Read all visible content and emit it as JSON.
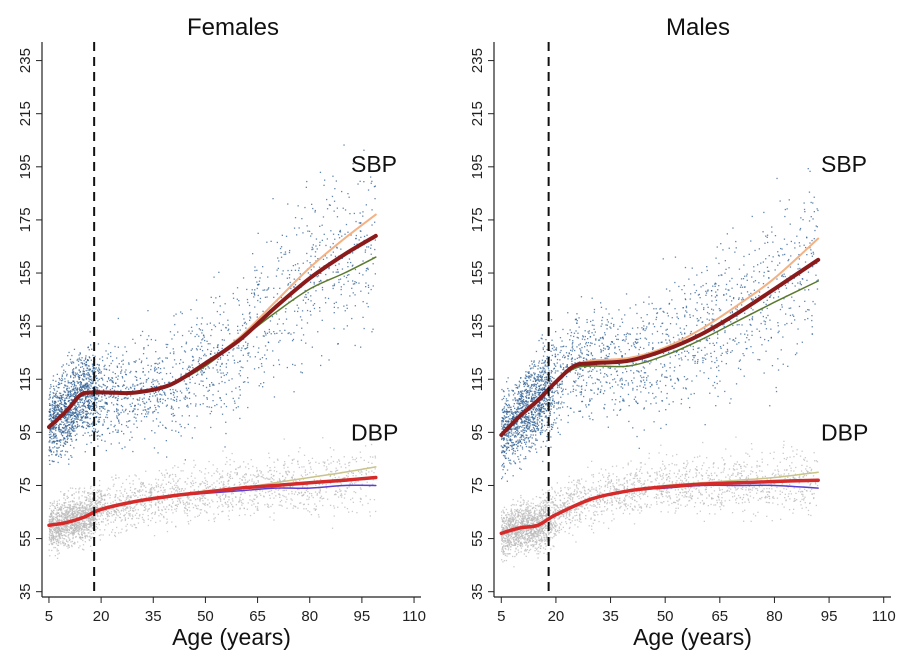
{
  "chart_data": [
    {
      "type": "scatter",
      "title": "Females",
      "xlabel": "Age (years)",
      "ylabel": "",
      "xlim": [
        3,
        112
      ],
      "ylim": [
        33,
        242
      ],
      "xticks": [
        "5",
        "20",
        "35",
        "50",
        "65",
        "80",
        "95",
        "110"
      ],
      "yticks": [
        "35",
        "55",
        "75",
        "95",
        "115",
        "135",
        "155",
        "175",
        "195",
        "215",
        "235"
      ],
      "grid": false,
      "vline_x": 18,
      "labels": {
        "sbp": "SBP",
        "dbp": "DBP"
      },
      "scatter": {
        "sbp": {
          "color": "#2d5f93",
          "x_range": [
            5,
            99
          ]
        },
        "dbp": {
          "color": "#b9b9b9",
          "x_range": [
            5,
            99
          ]
        }
      },
      "series": [
        {
          "group": "SBP",
          "color": "#f4b183",
          "width": 2,
          "points": [
            [
              5,
              97
            ],
            [
              10,
              103
            ],
            [
              14,
              109
            ],
            [
              17,
              110
            ],
            [
              22,
              110
            ],
            [
              30,
              110
            ],
            [
              40,
              113
            ],
            [
              50,
              121
            ],
            [
              60,
              131
            ],
            [
              70,
              144
            ],
            [
              80,
              157
            ],
            [
              90,
              168
            ],
            [
              99,
              177
            ]
          ]
        },
        {
          "group": "SBP",
          "color": "#5a7a2e",
          "width": 1.5,
          "points": [
            [
              5,
              97
            ],
            [
              10,
              103
            ],
            [
              14,
              109
            ],
            [
              17,
              110
            ],
            [
              22,
              110
            ],
            [
              30,
              110
            ],
            [
              40,
              113
            ],
            [
              50,
              120
            ],
            [
              60,
              130
            ],
            [
              70,
              140
            ],
            [
              80,
              149
            ],
            [
              90,
              155
            ],
            [
              99,
              161
            ]
          ]
        },
        {
          "group": "SBP",
          "color": "#8b1a1a",
          "width": 4,
          "points": [
            [
              5,
              97
            ],
            [
              10,
              103
            ],
            [
              14,
              109
            ],
            [
              17,
              110
            ],
            [
              22,
              110
            ],
            [
              30,
              110
            ],
            [
              40,
              113
            ],
            [
              50,
              121
            ],
            [
              60,
              130
            ],
            [
              70,
              142
            ],
            [
              80,
              153
            ],
            [
              90,
              162
            ],
            [
              99,
              169
            ]
          ]
        },
        {
          "group": "DBP",
          "color": "#c9c48a",
          "width": 1.5,
          "points": [
            [
              5,
              60
            ],
            [
              10,
              61
            ],
            [
              15,
              63
            ],
            [
              20,
              66
            ],
            [
              30,
              69
            ],
            [
              40,
              71
            ],
            [
              50,
              73
            ],
            [
              60,
              74
            ],
            [
              70,
              76
            ],
            [
              80,
              78
            ],
            [
              90,
              80
            ],
            [
              99,
              82
            ]
          ]
        },
        {
          "group": "DBP",
          "color": "#5b3fd0",
          "width": 1.5,
          "points": [
            [
              5,
              60
            ],
            [
              10,
              61
            ],
            [
              15,
              63
            ],
            [
              20,
              66
            ],
            [
              30,
              69
            ],
            [
              40,
              71
            ],
            [
              50,
              72
            ],
            [
              60,
              73
            ],
            [
              70,
              74
            ],
            [
              80,
              74
            ],
            [
              90,
              75
            ],
            [
              99,
              75
            ]
          ]
        },
        {
          "group": "DBP",
          "color": "#d42a2a",
          "width": 3.5,
          "points": [
            [
              5,
              60
            ],
            [
              10,
              61
            ],
            [
              15,
              63
            ],
            [
              20,
              66
            ],
            [
              30,
              69
            ],
            [
              40,
              71
            ],
            [
              50,
              72.5
            ],
            [
              60,
              74
            ],
            [
              70,
              75
            ],
            [
              80,
              76
            ],
            [
              90,
              77
            ],
            [
              99,
              78
            ]
          ]
        }
      ]
    },
    {
      "type": "scatter",
      "title": "Males",
      "xlabel": "Age (years)",
      "ylabel": "",
      "xlim": [
        3,
        112
      ],
      "ylim": [
        33,
        242
      ],
      "xticks": [
        "5",
        "20",
        "35",
        "50",
        "65",
        "80",
        "95",
        "110"
      ],
      "yticks": [
        "35",
        "55",
        "75",
        "95",
        "115",
        "135",
        "155",
        "175",
        "195",
        "215",
        "235"
      ],
      "grid": false,
      "vline_x": 18,
      "labels": {
        "sbp": "SBP",
        "dbp": "DBP"
      },
      "scatter": {
        "sbp": {
          "color": "#2d5f93",
          "x_range": [
            5,
            92
          ]
        },
        "dbp": {
          "color": "#b9b9b9",
          "x_range": [
            5,
            92
          ]
        }
      },
      "series": [
        {
          "group": "SBP",
          "color": "#f4b183",
          "width": 2,
          "points": [
            [
              5,
              94
            ],
            [
              10,
              101
            ],
            [
              15,
              107
            ],
            [
              20,
              114
            ],
            [
              25,
              120
            ],
            [
              30,
              122
            ],
            [
              40,
              123
            ],
            [
              50,
              127
            ],
            [
              60,
              134
            ],
            [
              70,
              143
            ],
            [
              80,
              153
            ],
            [
              92,
              168
            ]
          ]
        },
        {
          "group": "SBP",
          "color": "#5a7a2e",
          "width": 1.5,
          "points": [
            [
              5,
              94
            ],
            [
              10,
              101
            ],
            [
              15,
              107
            ],
            [
              20,
              114
            ],
            [
              25,
              119
            ],
            [
              30,
              120
            ],
            [
              40,
              120
            ],
            [
              50,
              124
            ],
            [
              60,
              130
            ],
            [
              70,
              137
            ],
            [
              80,
              144
            ],
            [
              92,
              152
            ]
          ]
        },
        {
          "group": "SBP",
          "color": "#8b1a1a",
          "width": 4,
          "points": [
            [
              5,
              94
            ],
            [
              10,
              101
            ],
            [
              15,
              107
            ],
            [
              20,
              114
            ],
            [
              25,
              120
            ],
            [
              30,
              121
            ],
            [
              40,
              122
            ],
            [
              50,
              126
            ],
            [
              60,
              132
            ],
            [
              70,
              140
            ],
            [
              80,
              149
            ],
            [
              92,
              160
            ]
          ]
        },
        {
          "group": "DBP",
          "color": "#c9c48a",
          "width": 1.5,
          "points": [
            [
              5,
              57
            ],
            [
              10,
              59
            ],
            [
              15,
              60
            ],
            [
              20,
              64
            ],
            [
              30,
              70
            ],
            [
              40,
              73
            ],
            [
              50,
              75
            ],
            [
              60,
              76
            ],
            [
              70,
              77
            ],
            [
              80,
              78
            ],
            [
              92,
              80
            ]
          ]
        },
        {
          "group": "DBP",
          "color": "#5b3fd0",
          "width": 1.5,
          "points": [
            [
              5,
              57
            ],
            [
              10,
              59
            ],
            [
              15,
              60
            ],
            [
              20,
              64
            ],
            [
              30,
              70
            ],
            [
              40,
              73
            ],
            [
              50,
              74
            ],
            [
              60,
              75
            ],
            [
              70,
              75
            ],
            [
              80,
              75
            ],
            [
              92,
              74
            ]
          ]
        },
        {
          "group": "DBP",
          "color": "#d42a2a",
          "width": 3.5,
          "points": [
            [
              5,
              57
            ],
            [
              10,
              59
            ],
            [
              15,
              60
            ],
            [
              20,
              64
            ],
            [
              30,
              70
            ],
            [
              40,
              73
            ],
            [
              50,
              74.5
            ],
            [
              60,
              75.5
            ],
            [
              70,
              76
            ],
            [
              80,
              76.5
            ],
            [
              92,
              77
            ]
          ]
        }
      ]
    }
  ]
}
